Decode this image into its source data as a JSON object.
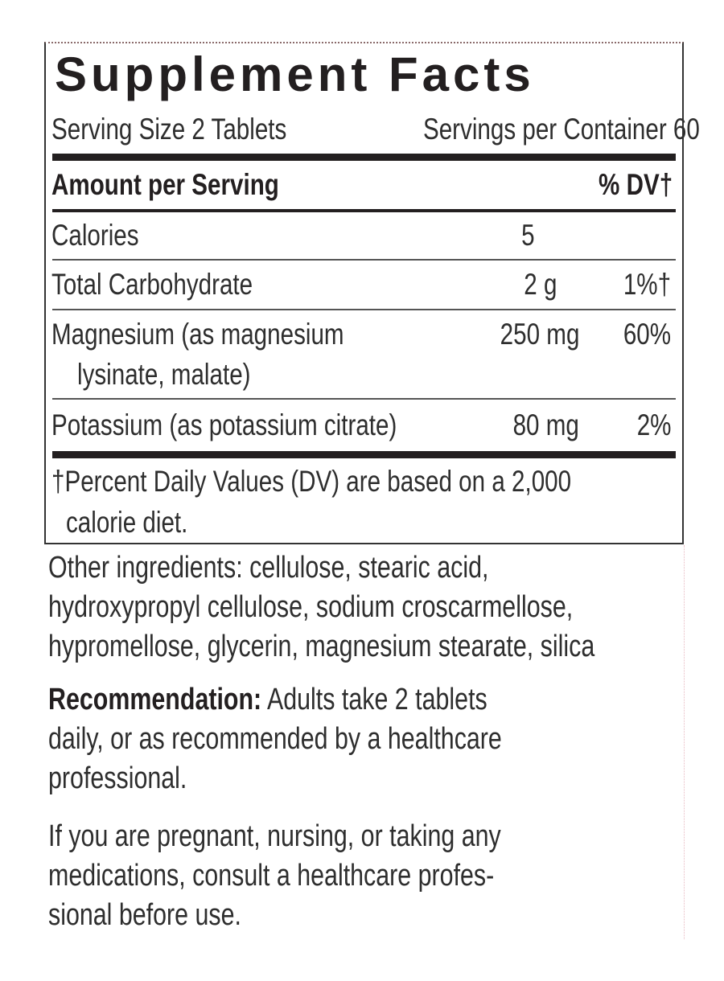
{
  "title": "Supplement Facts",
  "serving_size": "Serving Size 2 Tablets",
  "servings_per_container": "Servings per Container 60",
  "header": {
    "amount": "Amount per Serving",
    "dv": "% DV†"
  },
  "rows": [
    {
      "name": "Calories",
      "amount": "5",
      "dv": ""
    },
    {
      "name": "Total Carbohydrate",
      "amount": "2 g",
      "dv": "1%†"
    },
    {
      "name": "Magnesium (as magnesium",
      "name2": "lysinate, malate)",
      "amount": "250 mg",
      "dv": "60%"
    },
    {
      "name": "Potassium (as potassium citrate)",
      "amount": "80 mg",
      "dv": "2%"
    }
  ],
  "footnote": [
    "†Percent Daily Values (DV) are based on a 2,000",
    "calorie diet."
  ],
  "other_ingredients": [
    "Other ingredients: cellulose, stearic acid,",
    "hydroxypropyl cellulose, sodium croscarmellose,",
    "hypromellose, glycerin, magnesium stearate, silica"
  ],
  "recommendation": {
    "label": "Recommendation:",
    "lines": [
      " Adults take 2 tablets",
      "daily, or as recommended by a healthcare",
      "professional."
    ]
  },
  "warning": [
    "If you are pregnant, nursing, or taking any",
    "medications, consult a healthcare profes-",
    "sional before use."
  ]
}
